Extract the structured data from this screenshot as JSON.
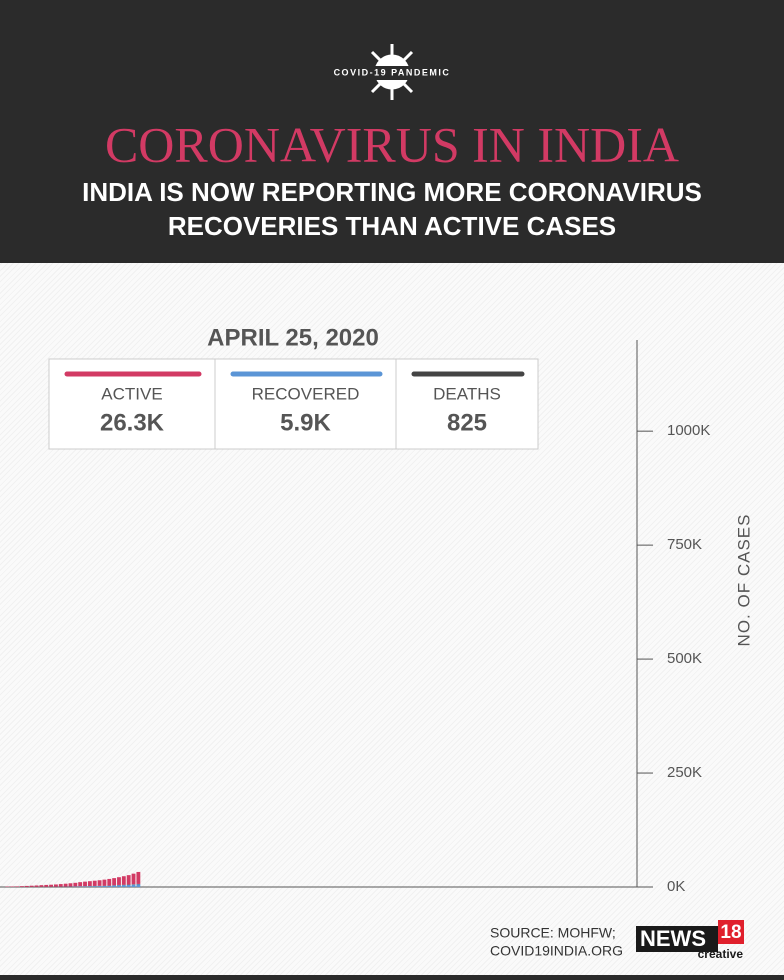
{
  "header": {
    "badge": "COVID-19 PANDEMIC",
    "title": "CORONAVIRUS IN INDIA",
    "subtitle": [
      "INDIA IS NOW REPORTING MORE CORONAVIRUS",
      "RECOVERIES THAN ACTIVE CASES"
    ]
  },
  "chart_data": {
    "type": "bar",
    "stacked": true,
    "summary": {
      "date": "APRIL 25, 2020",
      "labels": [
        "26.3K",
        "5.9K",
        "825"
      ]
    },
    "y_label": "NO. OF CASES",
    "categories": [
      null,
      null,
      null,
      null,
      null,
      null,
      null,
      null,
      null,
      null,
      null,
      null,
      null,
      null,
      null,
      null,
      null,
      null,
      null,
      null,
      null,
      null,
      null,
      null,
      null,
      null,
      null,
      null
    ],
    "series": [
      {
        "name": "ACTIVE",
        "color": "#d23a64",
        "values": [
          900,
          1050,
          1180,
          1700,
          2150,
          2600,
          3050,
          3650,
          4100,
          4500,
          4950,
          5700,
          6350,
          7100,
          7900,
          9100,
          10000,
          10700,
          11500,
          12300,
          13300,
          14600,
          15600,
          17000,
          18700,
          20500,
          23300,
          26300
        ]
      },
      {
        "name": "RECOVERED",
        "color": "#5b95d6",
        "values": [
          100,
          100,
          120,
          150,
          170,
          190,
          230,
          270,
          320,
          400,
          470,
          520,
          620,
          780,
          980,
          1190,
          1350,
          1640,
          1860,
          2020,
          2330,
          2540,
          3270,
          3870,
          4260,
          4810,
          5210,
          5900
        ]
      },
      {
        "name": "DEATHS",
        "color": "#444444",
        "values": [
          29,
          32,
          35,
          50,
          72,
          75,
          83,
          99,
          118,
          137,
          169,
          206,
          242,
          273,
          324,
          353,
          393,
          420,
          452,
          488,
          519,
          559,
          603,
          645,
          681,
          718,
          775,
          825
        ]
      }
    ],
    "ylim": [
      0,
      1200000
    ],
    "yticks": [
      {
        "value": 0,
        "label": "0K"
      },
      {
        "value": 250000,
        "label": "250K"
      },
      {
        "value": 500000,
        "label": "500K"
      },
      {
        "value": 750000,
        "label": "750K"
      },
      {
        "value": 1000000,
        "label": "1000K"
      }
    ]
  },
  "footer": {
    "source": [
      "SOURCE: MOHFW;",
      "COVID19INDIA.ORG"
    ],
    "logo": {
      "name": "NEWS",
      "number": "18",
      "tag": "creative"
    }
  }
}
